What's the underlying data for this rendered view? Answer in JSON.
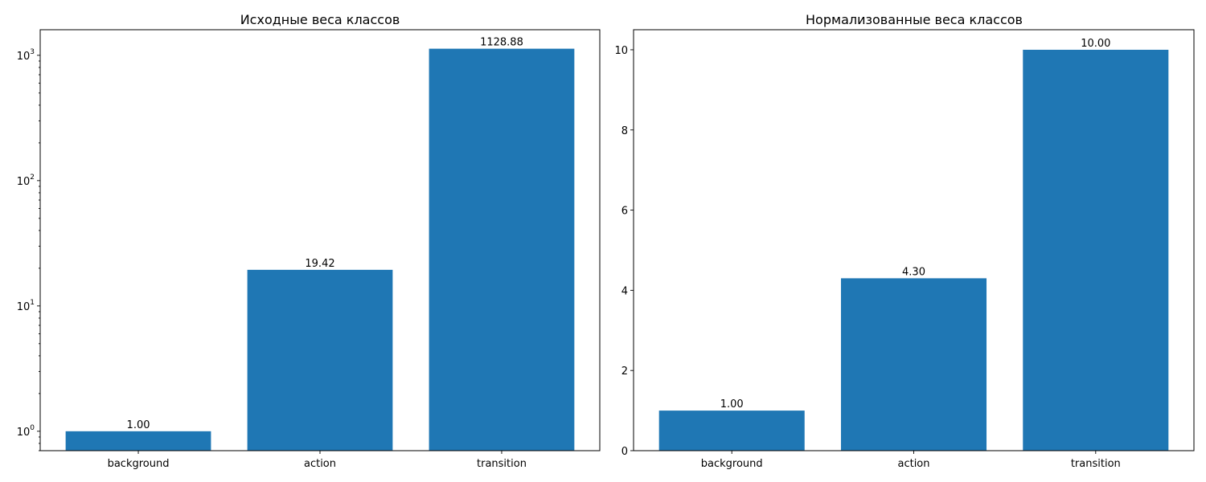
{
  "colors": {
    "bar": "#1f77b4",
    "axis": "#000000",
    "background": "#ffffff"
  },
  "chart_data": [
    {
      "type": "bar",
      "title": "Исходные веса классов",
      "categories": [
        "background",
        "action",
        "transition"
      ],
      "values": [
        1.0,
        19.42,
        1128.88
      ],
      "data_labels": [
        "1.00",
        "19.42",
        "1128.88"
      ],
      "yscale": "log",
      "ylim": [
        0.7,
        1600
      ],
      "yticks": [
        {
          "value": 1,
          "base": "10",
          "exp": "0"
        },
        {
          "value": 10,
          "base": "10",
          "exp": "1"
        },
        {
          "value": 100,
          "base": "10",
          "exp": "2"
        },
        {
          "value": 1000,
          "base": "10",
          "exp": "3"
        }
      ],
      "xlabel": "",
      "ylabel": "",
      "grid": false
    },
    {
      "type": "bar",
      "title": "Нормализованные веса классов",
      "categories": [
        "background",
        "action",
        "transition"
      ],
      "values": [
        1.0,
        4.3,
        10.0
      ],
      "data_labels": [
        "1.00",
        "4.30",
        "10.00"
      ],
      "yscale": "linear",
      "ylim": [
        0,
        10.5
      ],
      "yticks": [
        {
          "value": 0,
          "label": "0"
        },
        {
          "value": 2,
          "label": "2"
        },
        {
          "value": 4,
          "label": "4"
        },
        {
          "value": 6,
          "label": "6"
        },
        {
          "value": 8,
          "label": "8"
        },
        {
          "value": 10,
          "label": "10"
        }
      ],
      "xlabel": "",
      "ylabel": "",
      "grid": false
    }
  ]
}
